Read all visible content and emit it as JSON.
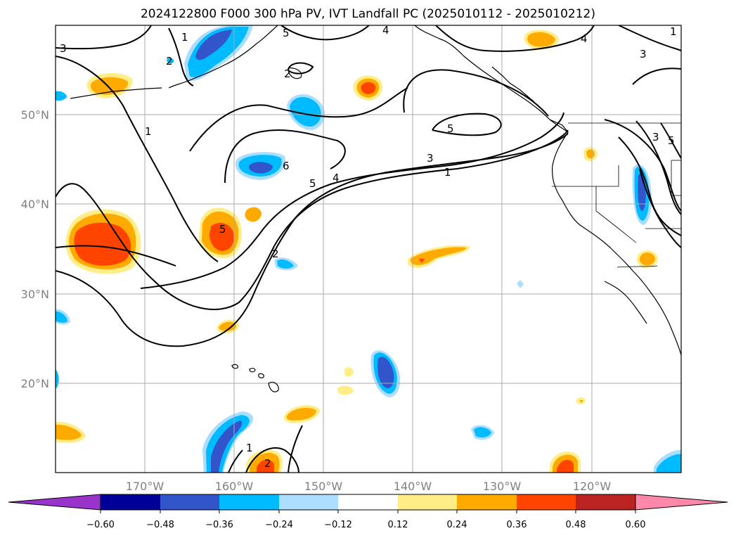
{
  "title": "2024122800 F000 300 hPa PV, IVT Landfall PC (2025010112 - 2025010212)",
  "map": {
    "lon_range": [
      -180,
      -110
    ],
    "lat_range": [
      10,
      60
    ],
    "lat_ticks": [
      {
        "value": 50,
        "label": "50°N"
      },
      {
        "value": 40,
        "label": "40°N"
      },
      {
        "value": 30,
        "label": "30°N"
      },
      {
        "value": 20,
        "label": "20°N"
      }
    ],
    "lon_ticks": [
      {
        "value": -170,
        "label": "170°W"
      },
      {
        "value": -160,
        "label": "160°W"
      },
      {
        "value": -150,
        "label": "150°W"
      },
      {
        "value": -140,
        "label": "140°W"
      },
      {
        "value": -130,
        "label": "130°W"
      },
      {
        "value": -120,
        "label": "120°W"
      }
    ],
    "gridlines": true,
    "contour_labels": [
      "1",
      "2",
      "3",
      "4",
      "5",
      "6",
      "1",
      "2",
      "3",
      "4",
      "5",
      "1",
      "2",
      "3",
      "4",
      "5",
      "2",
      "1",
      "1",
      "5",
      "3",
      "5"
    ]
  },
  "colorbar": {
    "ticks": [
      "−0.60",
      "−0.48",
      "−0.36",
      "−0.24",
      "−0.12",
      "0.12",
      "0.24",
      "0.36",
      "0.48",
      "0.60"
    ],
    "colors": [
      "#9933cc",
      "#000099",
      "#3355cc",
      "#00bbff",
      "#aaddff",
      "#ffffff",
      "#ffee88",
      "#ffaa00",
      "#ff4400",
      "#bb2222",
      "#ff88aa"
    ]
  }
}
